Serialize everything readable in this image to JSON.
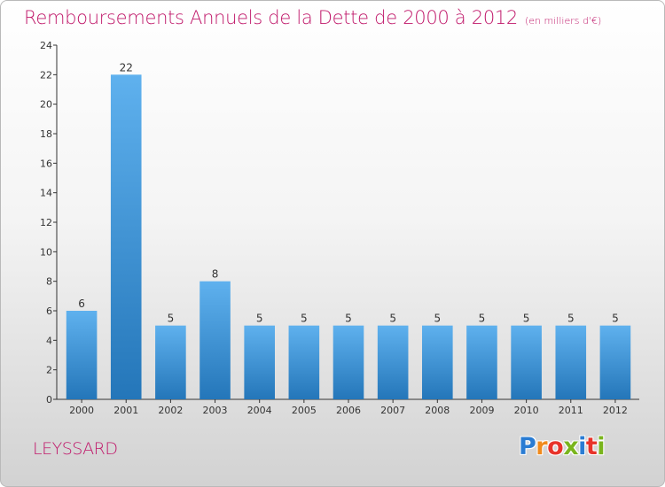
{
  "header": {
    "title": "Remboursements Annuels de la Dette de 2000 à 2012",
    "subtitle": "(en milliers d'€)"
  },
  "footer": {
    "town": "LEYSSARD",
    "logo_letters": [
      "P",
      "r",
      "o",
      "x",
      "i",
      "t",
      "i"
    ],
    "logo_colors": [
      "#2a7cd3",
      "#f08a1c",
      "#e8332a",
      "#7ab51d",
      "#2a7cd3",
      "#e8332a",
      "#7ab51d"
    ]
  },
  "colors": {
    "bar_top": "#5fb1ee",
    "bar_bottom": "#2476b9",
    "title": "#c0186a",
    "axis": "#333333"
  },
  "chart_data": {
    "type": "bar",
    "categories": [
      "2000",
      "2001",
      "2002",
      "2003",
      "2004",
      "2005",
      "2006",
      "2007",
      "2008",
      "2009",
      "2010",
      "2011",
      "2012"
    ],
    "values": [
      6,
      22,
      5,
      8,
      5,
      5,
      5,
      5,
      5,
      5,
      5,
      5,
      5
    ],
    "data_labels": [
      "6",
      "22",
      "5",
      "8",
      "5",
      "5",
      "5",
      "5",
      "5",
      "5",
      "5",
      "5",
      "5"
    ],
    "ylim": [
      0,
      24
    ],
    "yticks": [
      0,
      2,
      4,
      6,
      8,
      10,
      12,
      14,
      16,
      18,
      20,
      22,
      24
    ],
    "grid": false,
    "legend": "none"
  }
}
